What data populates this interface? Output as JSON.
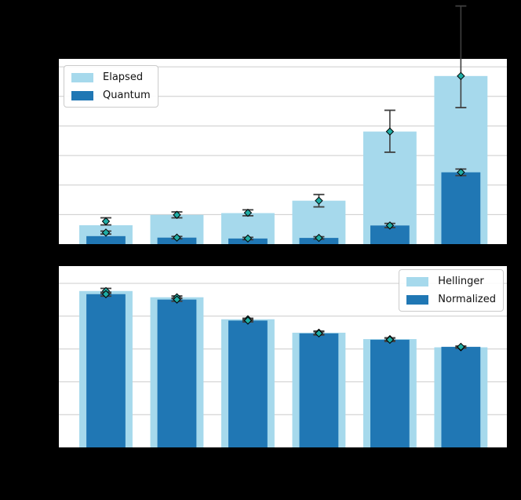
{
  "colors": {
    "figure_bg": "#000000",
    "axes_bg": "#ffffff",
    "grid": "#cccccc",
    "error": "#3f3f3f",
    "marker_fill": "#1faca4",
    "marker_edge": "#000000",
    "bar_light": "#a6d9ec",
    "bar_dark": "#2077b4"
  },
  "chart_data": [
    {
      "type": "bar",
      "name": "runtime-comparison",
      "title": "",
      "categories": [
        "",
        "",
        "",
        "",
        "",
        ""
      ],
      "grid": true,
      "legend_position": "upper left",
      "xlim": [
        -0.663,
        5.648
      ],
      "ylim": [
        0,
        6.27
      ],
      "ytick_step": 1,
      "note_units": "y-axis tick labels not visible; values expressed in gridline units",
      "series": [
        {
          "name": "Elapsed",
          "color": "#a6d9ec",
          "bar_width": 0.75,
          "values": [
            0.64,
            0.99,
            1.05,
            1.47,
            3.81,
            5.69
          ],
          "marker_values": [
            0.77,
            0.99,
            1.06,
            1.47,
            3.81,
            5.69
          ],
          "err_lo": [
            0.12,
            0.1,
            0.1,
            0.21,
            0.7,
            1.07
          ],
          "err_hi": [
            0.12,
            0.1,
            0.1,
            0.21,
            0.72,
            2.37
          ]
        },
        {
          "name": "Quantum",
          "color": "#2077b4",
          "bar_width": 0.55,
          "values": [
            0.27,
            0.22,
            0.19,
            0.21,
            0.63,
            2.43
          ],
          "marker_values": [
            0.39,
            0.22,
            0.19,
            0.21,
            0.63,
            2.43
          ],
          "err_lo": [
            0.05,
            0.04,
            0.04,
            0.04,
            0.07,
            0.11
          ],
          "err_hi": [
            0.05,
            0.04,
            0.04,
            0.04,
            0.07,
            0.11
          ]
        }
      ]
    },
    {
      "type": "bar",
      "name": "fidelity-comparison",
      "title": "",
      "categories": [
        "",
        "",
        "",
        "",
        "",
        ""
      ],
      "grid": true,
      "legend_position": "upper right",
      "xlim": [
        -0.663,
        5.648
      ],
      "ylim": [
        0,
        1.105
      ],
      "ytick_step": 0.2,
      "note_units": "y-axis tick labels not visible; gridlines every 0.2 assumed",
      "series": [
        {
          "name": "Hellinger",
          "color": "#a6d9ec",
          "bar_width": 0.75,
          "values": [
            0.953,
            0.915,
            0.781,
            0.699,
            0.66,
            0.61
          ],
          "err_lo": [
            0.016,
            0.008,
            0.006,
            0.01,
            0.008,
            0.005
          ],
          "err_hi": [
            0.016,
            0.008,
            0.006,
            0.01,
            0.008,
            0.005
          ]
        },
        {
          "name": "Normalized",
          "color": "#2077b4",
          "bar_width": 0.55,
          "values": [
            0.934,
            0.901,
            0.773,
            0.695,
            0.656,
            0.613
          ],
          "err_lo": [
            0.012,
            0.01,
            0.008,
            0.01,
            0.01,
            0.005
          ],
          "err_hi": [
            0.012,
            0.01,
            0.008,
            0.01,
            0.01,
            0.005
          ]
        }
      ]
    }
  ]
}
